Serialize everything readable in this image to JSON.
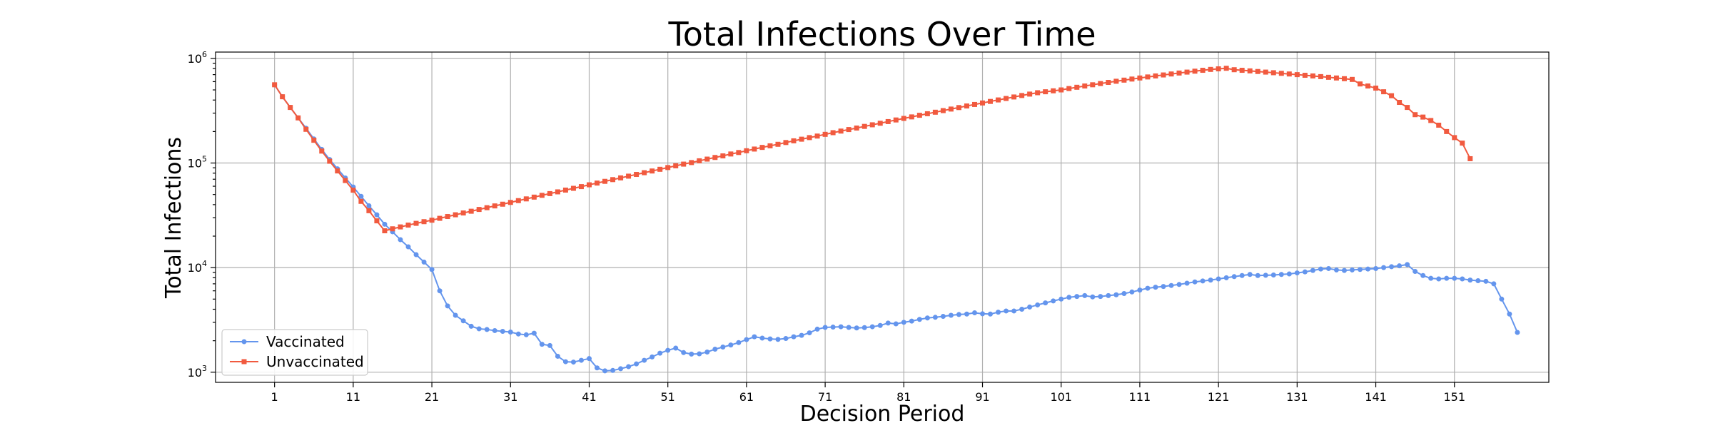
{
  "chart_data": {
    "type": "line",
    "title": "Total Infections Over Time",
    "xlabel": "Decision Period",
    "ylabel": "Total Infections",
    "yscale": "log",
    "ylim": [
      800,
      1150000
    ],
    "xlim": [
      -6.5,
      163
    ],
    "grid": true,
    "legend_position": "lower-left",
    "x_ticks": [
      1,
      11,
      21,
      31,
      41,
      51,
      61,
      71,
      81,
      91,
      101,
      111,
      121,
      131,
      141,
      151
    ],
    "y_ticks": [
      {
        "value": 1000,
        "base": "10",
        "exp": "3"
      },
      {
        "value": 10000,
        "base": "10",
        "exp": "4"
      },
      {
        "value": 100000,
        "base": "10",
        "exp": "5"
      },
      {
        "value": 1000000,
        "base": "10",
        "exp": "6"
      }
    ],
    "series": [
      {
        "name": "Vaccinated",
        "color": "#6495ED",
        "marker": "circle",
        "x_start": 1,
        "values": [
          560000,
          430000,
          340000,
          270000,
          215000,
          170000,
          135000,
          108000,
          88000,
          72000,
          59000,
          48000,
          39000,
          32000,
          26000,
          22000,
          18500,
          15800,
          13300,
          11300,
          9600,
          6000,
          4300,
          3500,
          3100,
          2750,
          2600,
          2560,
          2500,
          2460,
          2420,
          2320,
          2280,
          2360,
          1850,
          1800,
          1420,
          1260,
          1250,
          1300,
          1350,
          1100,
          1030,
          1040,
          1080,
          1130,
          1200,
          1300,
          1400,
          1520,
          1620,
          1700,
          1540,
          1490,
          1500,
          1560,
          1660,
          1740,
          1820,
          1920,
          2050,
          2180,
          2120,
          2080,
          2060,
          2100,
          2180,
          2250,
          2380,
          2580,
          2680,
          2700,
          2720,
          2680,
          2650,
          2670,
          2720,
          2800,
          2950,
          2900,
          3000,
          3080,
          3200,
          3300,
          3350,
          3420,
          3500,
          3560,
          3600,
          3700,
          3620,
          3600,
          3750,
          3850,
          3850,
          4000,
          4200,
          4400,
          4600,
          4800,
          5000,
          5200,
          5300,
          5400,
          5250,
          5300,
          5400,
          5500,
          5650,
          5850,
          6100,
          6350,
          6500,
          6600,
          6750,
          6900,
          7100,
          7300,
          7450,
          7600,
          7800,
          8000,
          8200,
          8400,
          8600,
          8400,
          8450,
          8500,
          8600,
          8700,
          8900,
          9100,
          9400,
          9700,
          9800,
          9500,
          9400,
          9500,
          9600,
          9700,
          9800,
          10000,
          10200,
          10400,
          10700,
          9200,
          8400,
          7900,
          7800,
          7900,
          7900,
          7800,
          7600,
          7500,
          7400,
          7000,
          5000,
          3600,
          2400
        ]
      },
      {
        "name": "Unvaccinated",
        "color": "#F15A3F",
        "marker": "square",
        "x_start": 1,
        "values": [
          560000,
          430000,
          340000,
          270000,
          210000,
          165000,
          130000,
          104000,
          84000,
          68000,
          55000,
          43000,
          35000,
          28000,
          22500,
          23500,
          24500,
          25500,
          26500,
          27500,
          28400,
          29600,
          30800,
          32000,
          33300,
          34600,
          36000,
          37400,
          38900,
          40400,
          42000,
          43700,
          45400,
          47200,
          49100,
          51000,
          53000,
          55100,
          57300,
          59500,
          61900,
          64300,
          66800,
          69400,
          72100,
          74900,
          77800,
          80800,
          83900,
          87100,
          90500,
          94000,
          97600,
          101000,
          105000,
          109000,
          113000,
          117000,
          122000,
          126000,
          131000,
          136000,
          141000,
          146000,
          151000,
          157000,
          163000,
          169000,
          175000,
          181000,
          188000,
          195000,
          202000,
          209000,
          216000,
          224000,
          232000,
          240000,
          249000,
          258000,
          267000,
          276000,
          286000,
          296000,
          306000,
          317000,
          328000,
          339000,
          351000,
          363000,
          375000,
          388000,
          401000,
          414000,
          428000,
          442000,
          456000,
          470000,
          480000,
          490000,
          500000,
          515000,
          530000,
          545000,
          560000,
          575000,
          590000,
          605000,
          620000,
          635000,
          650000,
          665000,
          680000,
          695000,
          710000,
          725000,
          740000,
          755000,
          770000,
          785000,
          795000,
          805000,
          780000,
          770000,
          760000,
          750000,
          740000,
          730000,
          720000,
          710000,
          700000,
          690000,
          680000,
          670000,
          660000,
          650000,
          640000,
          630000,
          570000,
          545000,
          520000,
          480000,
          440000,
          380000,
          340000,
          290000,
          275000,
          255000,
          230000,
          200000,
          175000,
          155000,
          110000
        ]
      }
    ]
  }
}
